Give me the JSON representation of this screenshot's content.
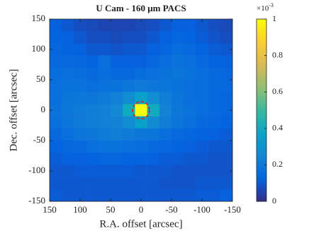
{
  "chart_data": {
    "type": "heatmap",
    "title": "U Cam - 160 μm PACS",
    "xlabel": "R.A. offset [arcsec]",
    "ylabel": "Dec. offset [arcsec]",
    "xlim": [
      150,
      -150
    ],
    "xticks": [
      150,
      100,
      50,
      0,
      -50,
      -100,
      -150
    ],
    "ylim": [
      -150,
      150
    ],
    "yticks": [
      -150,
      -100,
      -50,
      0,
      50,
      100,
      150
    ],
    "x": [
      140,
      120,
      100,
      80,
      60,
      40,
      20,
      0,
      -20,
      -40,
      -60,
      -80,
      -100,
      -120,
      -140
    ],
    "y": [
      140,
      120,
      100,
      80,
      60,
      40,
      20,
      0,
      -20,
      -40,
      -60,
      -80,
      -100,
      -120,
      -140
    ],
    "z": [
      [
        0.12,
        0.1,
        0.08,
        0.07,
        0.06,
        0.06,
        0.06,
        0.07,
        0.08,
        0.1,
        0.12,
        0.12,
        0.1,
        0.08,
        0.07
      ],
      [
        0.13,
        0.12,
        0.1,
        0.08,
        0.08,
        0.07,
        0.08,
        0.08,
        0.1,
        0.12,
        0.14,
        0.13,
        0.11,
        0.09,
        0.08
      ],
      [
        0.14,
        0.13,
        0.12,
        0.1,
        0.1,
        0.09,
        0.1,
        0.1,
        0.12,
        0.14,
        0.16,
        0.15,
        0.13,
        0.11,
        0.1
      ],
      [
        0.15,
        0.15,
        0.14,
        0.13,
        0.17,
        0.12,
        0.12,
        0.12,
        0.14,
        0.16,
        0.18,
        0.17,
        0.15,
        0.13,
        0.12
      ],
      [
        0.16,
        0.17,
        0.16,
        0.15,
        0.16,
        0.15,
        0.15,
        0.16,
        0.17,
        0.18,
        0.19,
        0.18,
        0.16,
        0.15,
        0.14
      ],
      [
        0.17,
        0.18,
        0.18,
        0.17,
        0.18,
        0.18,
        0.2,
        0.21,
        0.2,
        0.19,
        0.18,
        0.17,
        0.16,
        0.15,
        0.15
      ],
      [
        0.17,
        0.19,
        0.2,
        0.2,
        0.21,
        0.23,
        0.28,
        0.35,
        0.28,
        0.22,
        0.19,
        0.17,
        0.16,
        0.15,
        0.14
      ],
      [
        0.18,
        0.2,
        0.21,
        0.22,
        0.23,
        0.26,
        0.4,
        1.0,
        0.4,
        0.24,
        0.2,
        0.18,
        0.16,
        0.15,
        0.14
      ],
      [
        0.17,
        0.19,
        0.21,
        0.22,
        0.23,
        0.24,
        0.28,
        0.35,
        0.27,
        0.22,
        0.19,
        0.17,
        0.15,
        0.14,
        0.13
      ],
      [
        0.15,
        0.17,
        0.19,
        0.2,
        0.21,
        0.22,
        0.21,
        0.2,
        0.19,
        0.17,
        0.15,
        0.14,
        0.13,
        0.12,
        0.11
      ],
      [
        0.13,
        0.14,
        0.15,
        0.17,
        0.18,
        0.18,
        0.17,
        0.16,
        0.15,
        0.14,
        0.13,
        0.12,
        0.11,
        0.1,
        0.1
      ],
      [
        0.11,
        0.12,
        0.12,
        0.13,
        0.14,
        0.14,
        0.13,
        0.13,
        0.12,
        0.11,
        0.11,
        0.1,
        0.1,
        0.09,
        0.09
      ],
      [
        0.1,
        0.1,
        0.11,
        0.11,
        0.11,
        0.11,
        0.11,
        0.1,
        0.1,
        0.1,
        0.09,
        0.09,
        0.09,
        0.09,
        0.09
      ],
      [
        0.1,
        0.1,
        0.1,
        0.1,
        0.1,
        0.1,
        0.1,
        0.1,
        0.1,
        0.09,
        0.09,
        0.09,
        0.1,
        0.1,
        0.1
      ],
      [
        0.11,
        0.1,
        0.1,
        0.1,
        0.1,
        0.1,
        0.1,
        0.1,
        0.1,
        0.1,
        0.1,
        0.1,
        0.11,
        0.11,
        0.12
      ]
    ],
    "clim": [
      0,
      1
    ],
    "cticks": [
      0,
      0.2,
      0.4,
      0.6,
      0.8,
      1
    ],
    "colorbar_multiplier": "×10",
    "colorbar_exponent": "-3",
    "colormap": [
      "#352a87",
      "#0363e1",
      "#1485d4",
      "#06a7c6",
      "#38b99e",
      "#92bf73",
      "#d9ba56",
      "#fcce2e",
      "#f9fb0e"
    ]
  }
}
